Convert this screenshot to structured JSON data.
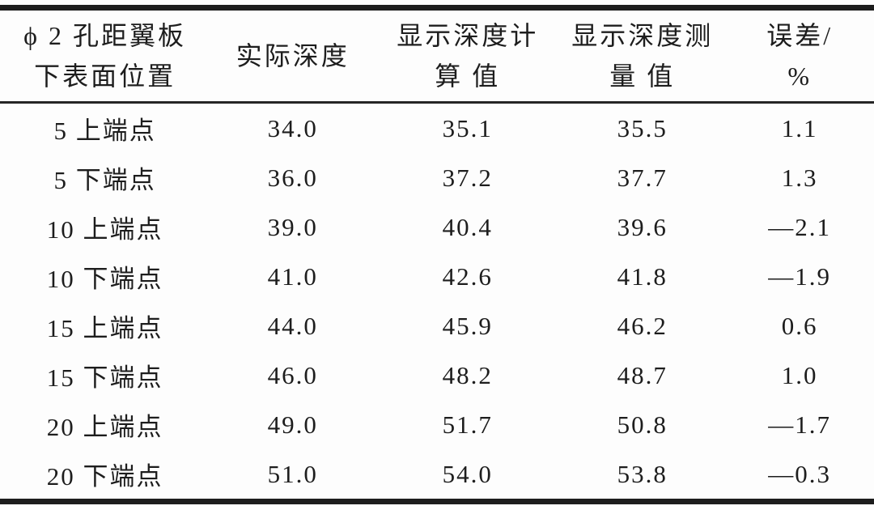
{
  "page": {
    "background_color": "#fdfdfd",
    "rule_color": "#1c1c1c",
    "text_color": "#1d1d1d"
  },
  "table": {
    "header": {
      "col1": {
        "line1": "ϕ 2 孔距翼板",
        "line2": "下表面位置"
      },
      "col2": {
        "line1": "实际深度"
      },
      "col3": {
        "line1": "显示深度计",
        "line2": "算 值"
      },
      "col4": {
        "line1": "显示深度测",
        "line2": "量 值"
      },
      "col5": {
        "line1": "误差/",
        "line2": "%"
      }
    },
    "rows": [
      {
        "position": "5 上端点",
        "actual": "34.0",
        "calc": "35.1",
        "measured": "35.5",
        "error": "1.1"
      },
      {
        "position": "5 下端点",
        "actual": "36.0",
        "calc": "37.2",
        "measured": "37.7",
        "error": "1.3"
      },
      {
        "position": "10 上端点",
        "actual": "39.0",
        "calc": "40.4",
        "measured": "39.6",
        "error": "—2.1"
      },
      {
        "position": "10 下端点",
        "actual": "41.0",
        "calc": "42.6",
        "measured": "41.8",
        "error": "—1.9"
      },
      {
        "position": "15 上端点",
        "actual": "44.0",
        "calc": "45.9",
        "measured": "46.2",
        "error": "0.6"
      },
      {
        "position": "15 下端点",
        "actual": "46.0",
        "calc": "48.2",
        "measured": "48.7",
        "error": "1.0"
      },
      {
        "position": "20 上端点",
        "actual": "49.0",
        "calc": "51.7",
        "measured": "50.8",
        "error": "—1.7"
      },
      {
        "position": "20 下端点",
        "actual": "51.0",
        "calc": "54.0",
        "measured": "53.8",
        "error": "—0.3"
      }
    ]
  }
}
